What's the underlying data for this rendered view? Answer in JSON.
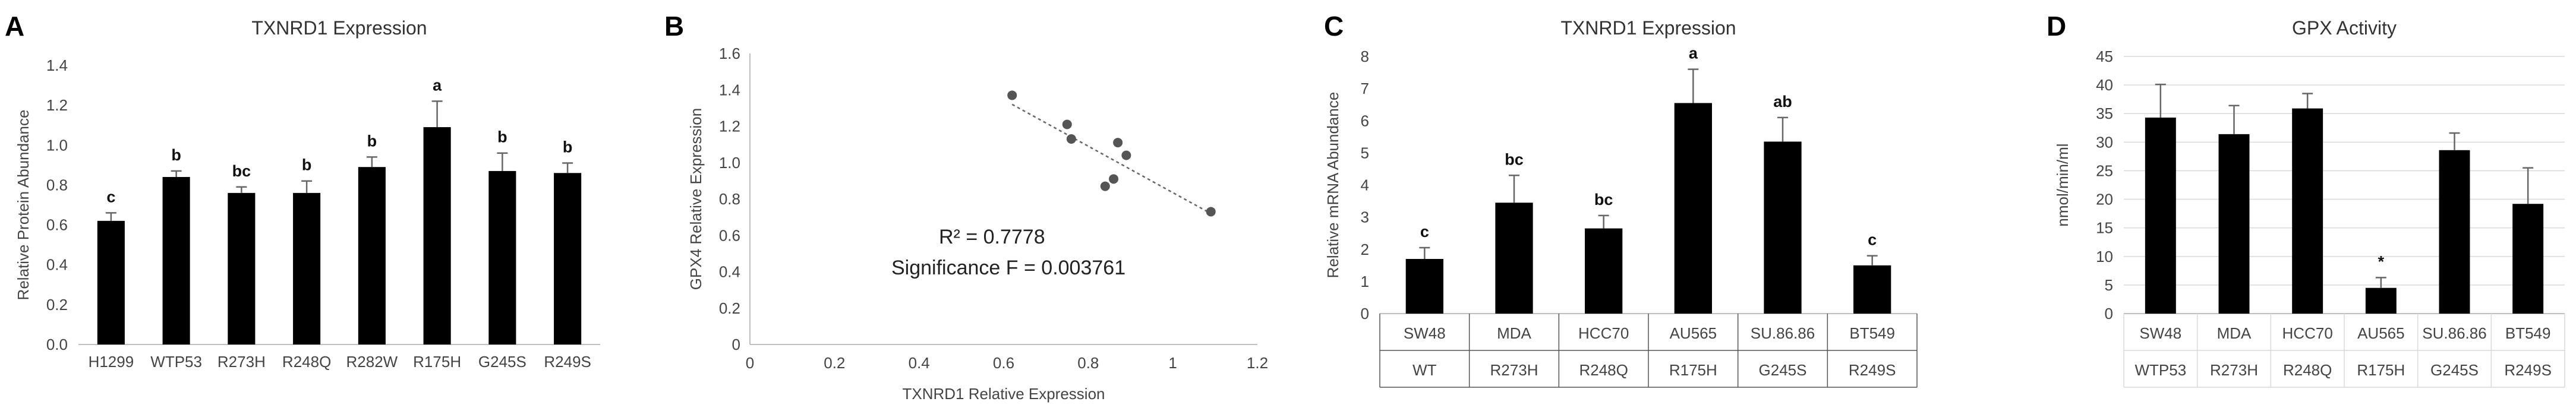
{
  "chart_data": [
    {
      "id": "A",
      "type": "bar",
      "panel_label": "A",
      "title": "TXNRD1 Expression",
      "ylabel": "Relative Protein Abundance",
      "xlabel": "",
      "ylim": [
        0,
        1.4
      ],
      "yticks": [
        "0.0",
        "0.2",
        "0.4",
        "0.6",
        "0.8",
        "1.0",
        "1.2",
        "1.4"
      ],
      "grid": false,
      "categories": [
        "H1299",
        "WTP53",
        "R273H",
        "R248Q",
        "R282W",
        "R175H",
        "G245S",
        "R249S"
      ],
      "values": [
        0.62,
        0.84,
        0.76,
        0.76,
        0.89,
        1.09,
        0.87,
        0.86
      ],
      "errors": [
        0.04,
        0.03,
        0.03,
        0.06,
        0.05,
        0.13,
        0.09,
        0.05
      ],
      "significance": [
        "c",
        "b",
        "bc",
        "b",
        "b",
        "a",
        "b",
        "b"
      ]
    },
    {
      "id": "B",
      "type": "scatter",
      "panel_label": "B",
      "title": "",
      "xlabel": "TXNRD1 Relative Expression",
      "ylabel": "GPX4 Relative Expression",
      "xlim": [
        0,
        1.2
      ],
      "ylim": [
        0,
        1.6
      ],
      "xticks": [
        "0",
        "0.2",
        "0.4",
        "0.6",
        "0.8",
        "1",
        "1.2"
      ],
      "yticks": [
        "0",
        "0.2",
        "0.4",
        "0.6",
        "0.8",
        "1.0",
        "1.2",
        "1.4",
        "1.6"
      ],
      "grid": false,
      "points": [
        {
          "x": 0.62,
          "y": 1.37
        },
        {
          "x": 0.75,
          "y": 1.21
        },
        {
          "x": 0.76,
          "y": 1.13
        },
        {
          "x": 0.84,
          "y": 0.87
        },
        {
          "x": 0.86,
          "y": 0.91
        },
        {
          "x": 0.87,
          "y": 1.11
        },
        {
          "x": 0.89,
          "y": 1.04
        },
        {
          "x": 1.09,
          "y": 0.73
        }
      ],
      "trendline": {
        "x": [
          0.62,
          1.09
        ],
        "y": [
          1.32,
          0.72
        ]
      },
      "annotation_r2": "R² = 0.7778",
      "annotation_f": "Significance F = 0.003761"
    },
    {
      "id": "C",
      "type": "bar",
      "panel_label": "C",
      "title": "TXNRD1 Expression",
      "ylabel": "Relative mRNA Abundance",
      "xlabel": "",
      "ylim": [
        0,
        8
      ],
      "yticks": [
        "0",
        "1",
        "2",
        "3",
        "4",
        "5",
        "6",
        "7",
        "8"
      ],
      "grid": false,
      "categories": [
        "SW48",
        "MDA",
        "HCC70",
        "AU565",
        "SU.86.86",
        "BT549"
      ],
      "subcategories": [
        "WT",
        "R273H",
        "R248Q",
        "R175H",
        "G245S",
        "R249S"
      ],
      "values": [
        1.7,
        3.45,
        2.65,
        6.55,
        5.35,
        1.5
      ],
      "errors": [
        0.35,
        0.85,
        0.4,
        1.05,
        0.75,
        0.3
      ],
      "significance": [
        "c",
        "bc",
        "bc",
        "a",
        "ab",
        "c"
      ]
    },
    {
      "id": "D",
      "type": "bar",
      "panel_label": "D",
      "title": "GPX Activity",
      "ylabel": "nmol/min/ml",
      "xlabel": "",
      "ylim": [
        0,
        45
      ],
      "yticks": [
        "0",
        "5",
        "10",
        "15",
        "20",
        "25",
        "30",
        "35",
        "40",
        "45"
      ],
      "grid": true,
      "categories": [
        "SW48",
        "MDA",
        "HCC70",
        "AU565",
        "SU.86.86",
        "BT549"
      ],
      "subcategories": [
        "WTP53",
        "R273H",
        "R248Q",
        "R175H",
        "G245S",
        "R249S"
      ],
      "values": [
        34.3,
        31.4,
        35.9,
        4.5,
        28.6,
        19.2
      ],
      "errors": [
        5.8,
        5.0,
        2.6,
        1.8,
        3.0,
        6.3
      ],
      "significance": [
        "",
        "",
        "",
        "*",
        "",
        ""
      ]
    }
  ]
}
